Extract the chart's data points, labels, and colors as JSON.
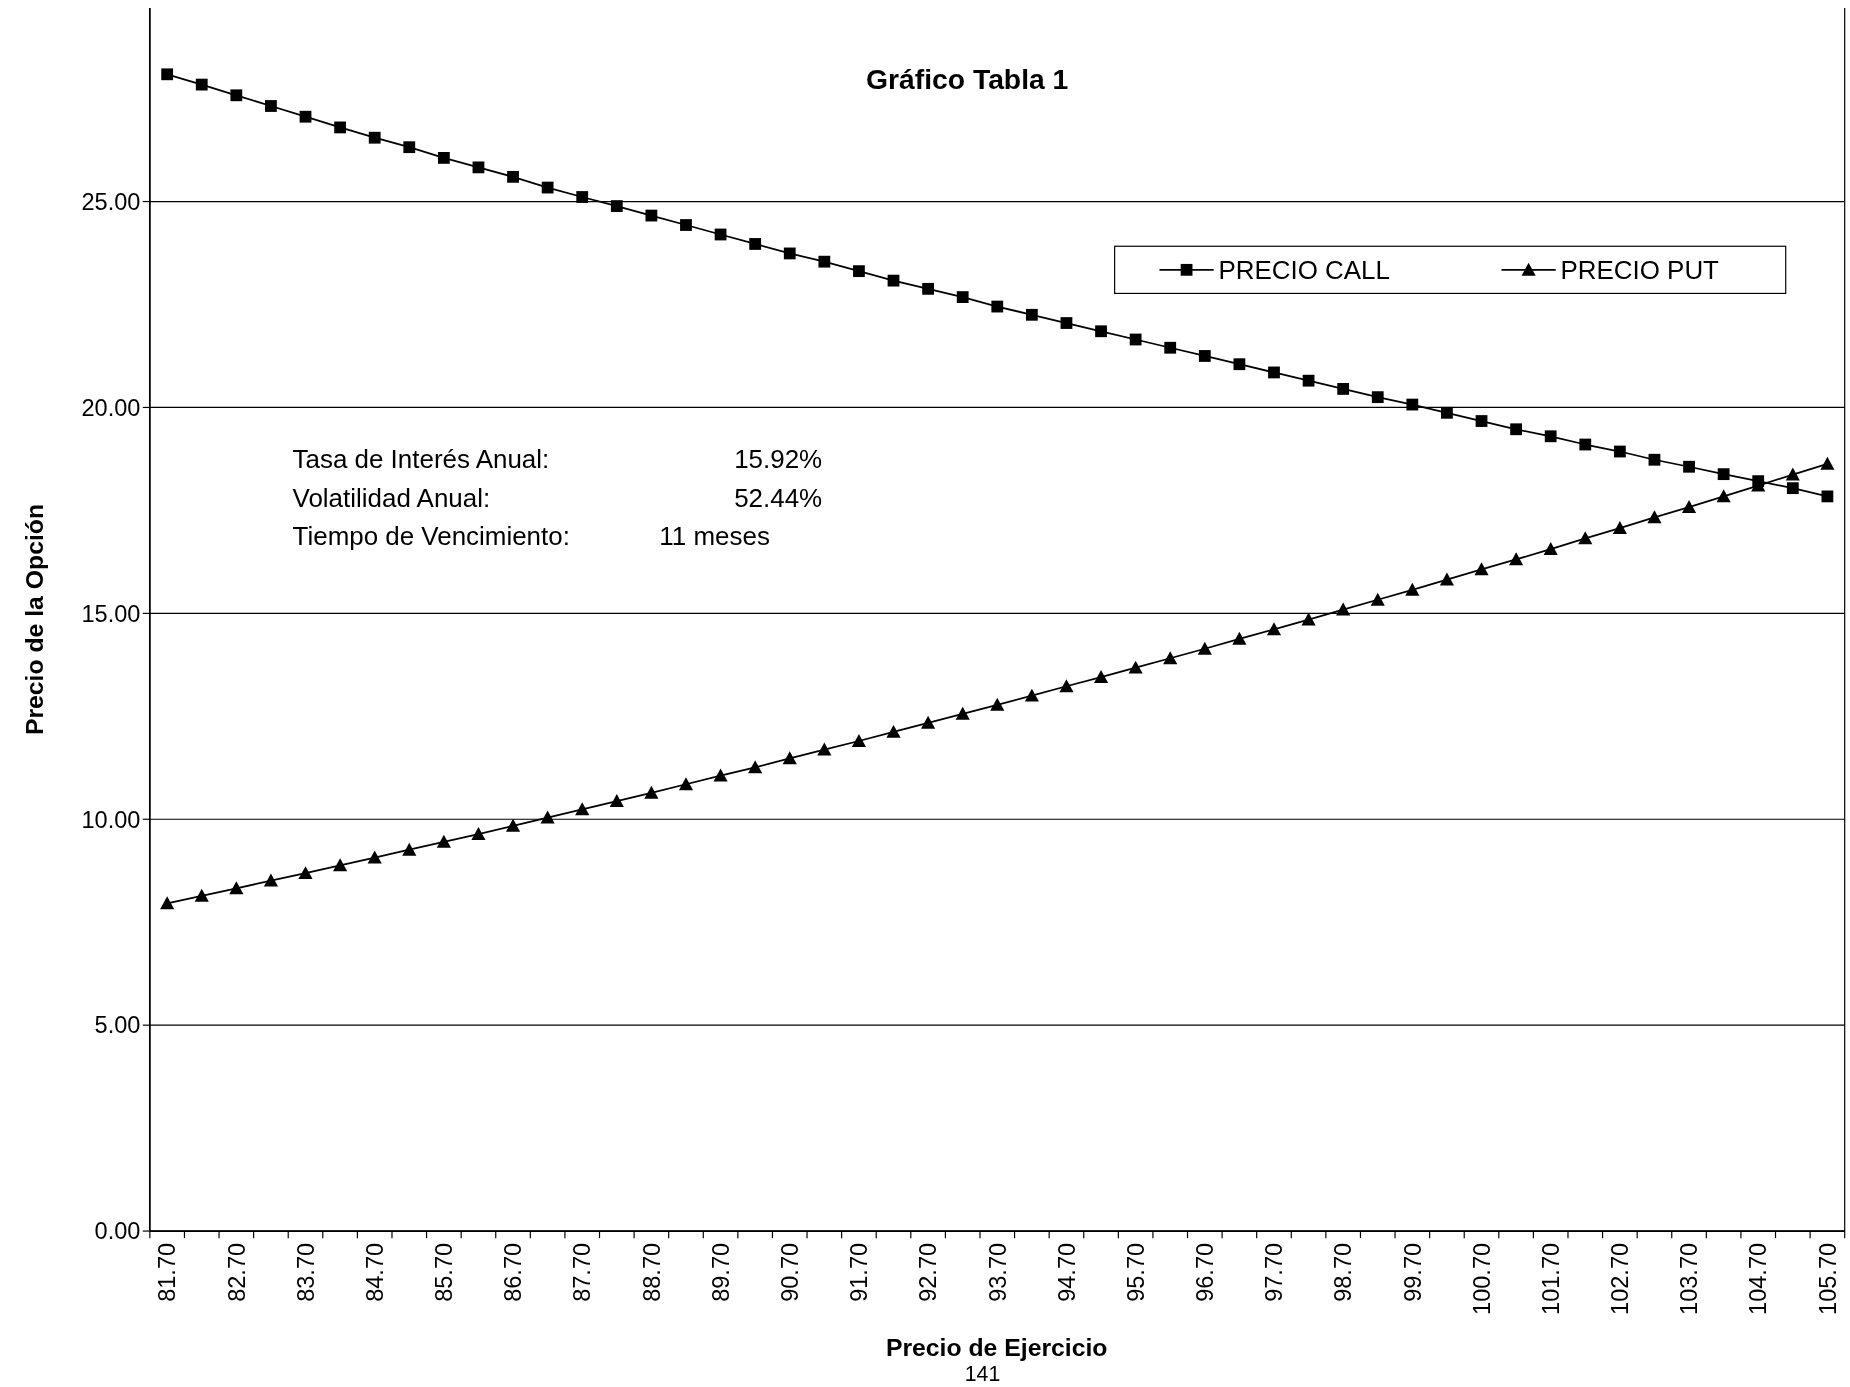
{
  "chart_data": {
    "type": "line",
    "title": "Gráfico Tabla 1",
    "xlabel": "Precio de Ejercicio",
    "ylabel": "Precio de la Opción",
    "categories": [
      "81.70",
      null,
      "82.70",
      null,
      "83.70",
      null,
      "84.70",
      null,
      "85.70",
      null,
      "86.70",
      null,
      "87.70",
      null,
      "88.70",
      null,
      "89.70",
      null,
      "90.70",
      null,
      "91.70",
      null,
      "92.70",
      null,
      "93.70",
      null,
      "94.70",
      null,
      "95.70",
      null,
      "96.70",
      null,
      "97.70",
      null,
      "98.70",
      null,
      "99.70",
      null,
      "100.70",
      null,
      "101.70",
      null,
      "102.70",
      null,
      "103.70",
      null,
      "104.70",
      null,
      "105.70"
    ],
    "series": [
      {
        "name": "PRECIO CALL",
        "color": "#000000",
        "marker": "square",
        "values": [
          28.09,
          27.84,
          27.58,
          27.32,
          27.06,
          26.8,
          26.55,
          26.32,
          26.06,
          25.83,
          25.6,
          25.34,
          25.11,
          24.89,
          24.66,
          24.43,
          24.2,
          23.97,
          23.74,
          23.54,
          23.31,
          23.08,
          22.88,
          22.68,
          22.45,
          22.25,
          22.05,
          21.85,
          21.65,
          21.45,
          21.25,
          21.05,
          20.85,
          20.65,
          20.45,
          20.25,
          20.07,
          19.87,
          19.67,
          19.47,
          19.3,
          19.1,
          18.93,
          18.73,
          18.56,
          18.38,
          18.21,
          18.04,
          17.84
        ]
      },
      {
        "name": "PRECIO PUT",
        "color": "#000000",
        "marker": "triangle",
        "values": [
          7.96,
          8.14,
          8.32,
          8.51,
          8.69,
          8.88,
          9.07,
          9.26,
          9.45,
          9.64,
          9.84,
          10.04,
          10.24,
          10.44,
          10.64,
          10.85,
          11.06,
          11.26,
          11.48,
          11.69,
          11.9,
          12.12,
          12.34,
          12.56,
          12.78,
          13.0,
          13.23,
          13.45,
          13.68,
          13.91,
          14.14,
          14.38,
          14.61,
          14.85,
          15.09,
          15.33,
          15.57,
          15.82,
          16.07,
          16.31,
          16.56,
          16.82,
          17.07,
          17.33,
          17.58,
          17.84,
          18.1,
          18.37,
          18.63
        ]
      }
    ],
    "ylim": [
      0,
      29.7
    ],
    "yticks": [
      {
        "value": 0,
        "label": "0.00"
      },
      {
        "value": 5,
        "label": "5.00"
      },
      {
        "value": 10,
        "label": "10.00"
      },
      {
        "value": 15,
        "label": "15.00"
      },
      {
        "value": 20,
        "label": "20.00"
      },
      {
        "value": 25,
        "label": "25.00"
      }
    ],
    "grid": "y",
    "legend": "top right",
    "annotations": [
      "Tasa de Interés Anual:",
      "15.92%",
      "Volatilidad Anual:",
      "52.44%",
      "Tiempo de Vencimiento:",
      "11 meses",
      "141"
    ]
  }
}
